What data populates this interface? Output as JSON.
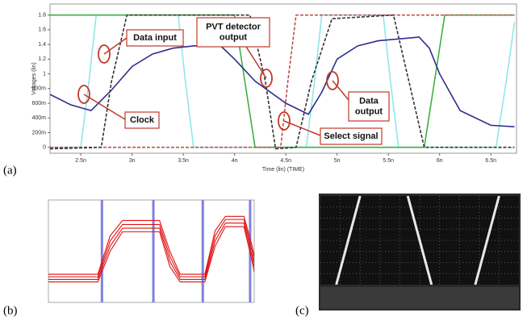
{
  "chart_data": [
    {
      "type": "line",
      "xlabel": "Time (lin) (TIME)",
      "ylabel": "Voltages (lin)",
      "xlim": [
        2.2,
        6.75
      ],
      "ylim": [
        -0.08,
        1.95
      ],
      "xticks": [
        {
          "value": 2.5,
          "label": "2.5n"
        },
        {
          "value": 3,
          "label": "3n"
        },
        {
          "value": 3.5,
          "label": "3.5n"
        },
        {
          "value": 4,
          "label": "4n"
        },
        {
          "value": 4.5,
          "label": "4.5n"
        },
        {
          "value": 5,
          "label": "5n"
        },
        {
          "value": 5.5,
          "label": "5.5n"
        },
        {
          "value": 6,
          "label": "6n"
        },
        {
          "value": 6.5,
          "label": "6.5n"
        }
      ],
      "yticks": [
        0,
        {
          "value": 0.2,
          "label": "200m"
        },
        {
          "value": 0.4,
          "label": "400m"
        },
        {
          "value": 0.6,
          "label": "600m"
        },
        {
          "value": 0.8,
          "label": "800m"
        },
        1,
        1.2,
        1.4,
        1.6,
        1.8
      ],
      "series": [
        {
          "color": "#8ee8e8",
          "dash": false,
          "x": [
            2.2,
            2.5,
            2.58,
            2.65,
            3.45,
            3.52,
            3.6,
            4.7,
            4.78,
            4.85,
            5.45,
            5.52,
            5.6,
            6.55,
            6.65,
            6.73
          ],
          "values": [
            0,
            0,
            0.9,
            1.8,
            1.8,
            0.9,
            0,
            0,
            0.9,
            1.8,
            1.8,
            0.9,
            0,
            0,
            0.9,
            1.7
          ]
        },
        {
          "color": "#3cb043",
          "dash": false,
          "x": [
            2.2,
            4.0,
            4.1,
            4.2,
            5.85,
            5.95,
            6.05,
            6.73
          ],
          "values": [
            1.8,
            1.8,
            0.9,
            0,
            0,
            0.9,
            1.8,
            1.8
          ]
        },
        {
          "color": "#c0504d",
          "dash": true,
          "x": [
            2.2,
            4.45,
            4.52,
            4.6,
            6.73
          ],
          "values": [
            0,
            0,
            0.9,
            1.8,
            1.8
          ]
        },
        {
          "color": "#333333",
          "dash": true,
          "x": [
            2.2,
            2.7,
            2.8,
            2.95,
            4.15,
            4.3,
            4.4,
            4.6,
            4.75,
            4.95,
            5.55,
            5.7,
            5.85,
            6.73
          ],
          "values": [
            -0.02,
            0,
            0.9,
            1.8,
            1.8,
            0.9,
            -0.02,
            0,
            0.9,
            1.75,
            1.8,
            0.9,
            0,
            0
          ]
        },
        {
          "color": "#2e2e8c",
          "dash": false,
          "x": [
            2.2,
            2.4,
            2.6,
            2.8,
            3.0,
            3.2,
            3.4,
            3.6,
            3.85,
            4.0,
            4.2,
            4.5,
            4.72,
            4.85,
            5.0,
            5.2,
            5.4,
            5.8,
            5.9,
            6.0,
            6.2,
            6.5,
            6.73
          ],
          "values": [
            0.72,
            0.58,
            0.5,
            0.78,
            1.1,
            1.27,
            1.35,
            1.38,
            1.4,
            1.2,
            0.9,
            0.6,
            0.45,
            0.75,
            1.2,
            1.38,
            1.45,
            1.5,
            1.35,
            1.0,
            0.5,
            0.3,
            0.28
          ]
        }
      ],
      "annotations": [
        {
          "text": [
            "Data input"
          ]
        },
        {
          "text": [
            "PVT detector",
            "output"
          ]
        },
        {
          "text": [
            "Clock"
          ]
        },
        {
          "text": [
            "Select signal"
          ]
        },
        {
          "text": [
            "Data",
            "output"
          ]
        }
      ],
      "panel_label": "(a)"
    },
    {
      "type": "line",
      "xlim": [
        0,
        10
      ],
      "ylim": [
        -0.4,
        1.6
      ],
      "x": [
        0,
        2.4,
        3.0,
        3.6,
        5.4,
        5.9,
        6.4,
        7.6,
        8.1,
        8.6,
        9.5,
        9.9,
        10
      ],
      "series": [
        {
          "color": "#e01010",
          "values": [
            0.05,
            0.05,
            0.7,
            1.05,
            1.05,
            0.4,
            0.05,
            0.05,
            0.8,
            1.15,
            1.15,
            0.5,
            0.3
          ]
        },
        {
          "color": "#e01010",
          "values": [
            0.1,
            0.1,
            0.8,
            1.12,
            1.12,
            0.5,
            0.1,
            0.1,
            0.9,
            1.22,
            1.22,
            0.6,
            0.4
          ]
        },
        {
          "color": "#e01010",
          "values": [
            0.0,
            0.0,
            0.6,
            0.98,
            0.98,
            0.3,
            0.0,
            0.0,
            0.7,
            1.08,
            1.08,
            0.4,
            0.2
          ]
        },
        {
          "color": "#e01010",
          "values": [
            0.15,
            0.15,
            0.9,
            1.2,
            1.2,
            0.6,
            0.15,
            0.15,
            1.0,
            1.28,
            1.28,
            0.7,
            0.5
          ]
        }
      ],
      "pulses": [
        2.6,
        5.1,
        7.5,
        9.8
      ],
      "pulse_color": "#8080e0",
      "panel_label": "(b)"
    },
    {
      "type": "line",
      "xlim": [
        0,
        1
      ],
      "ylim": [
        0,
        1
      ],
      "x": [
        0.08,
        0.2,
        0.44,
        0.56,
        0.78,
        0.9
      ],
      "series": [
        {
          "color": "#e8e8e8",
          "values": [
            0,
            1,
            null,
            null,
            null,
            null
          ]
        },
        {
          "color": "#e8e8e8",
          "values": [
            null,
            null,
            1,
            0,
            null,
            null
          ]
        },
        {
          "color": "#e8e8e8",
          "values": [
            null,
            null,
            null,
            null,
            0,
            1
          ]
        }
      ],
      "panel_label": "(c)"
    }
  ]
}
